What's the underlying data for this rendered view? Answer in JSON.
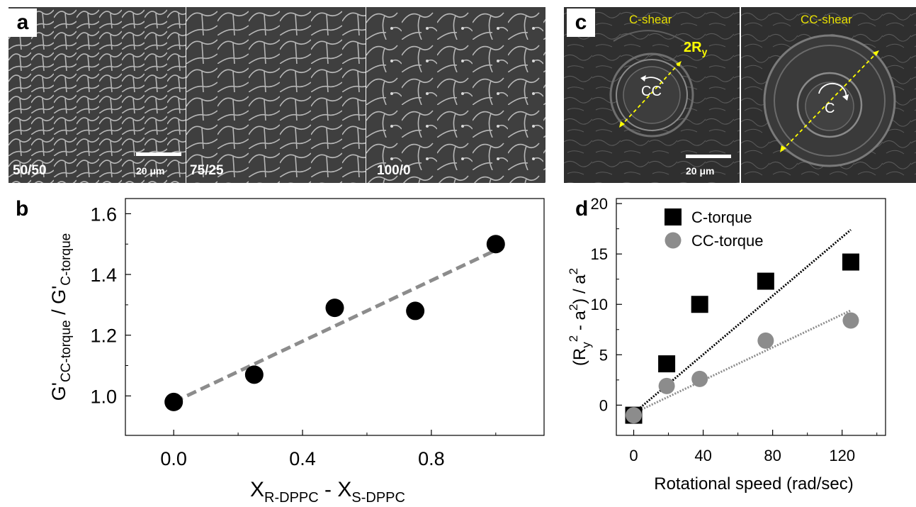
{
  "panel_a": {
    "label": "a",
    "images": [
      {
        "label": "50/50"
      },
      {
        "label": "75/25"
      },
      {
        "label": "100/0"
      }
    ],
    "scalebar_label": "20 μm"
  },
  "panel_c": {
    "label": "c",
    "left_title": "C-shear",
    "right_title": "CC-shear",
    "ry_label_main": "2R",
    "ry_label_sub": "y",
    "left_arrow_label": "CC",
    "right_arrow_label": "C",
    "scalebar_label": "20 μm",
    "accent_color": "#ffff00"
  },
  "chart_data": [
    {
      "panel": "b",
      "type": "scatter",
      "xlabel_main": "X",
      "xlabel_sub1": "R-DPPC",
      "xlabel_mid": " - X",
      "xlabel_sub2": "S-DPPC",
      "ylabel_main1": "G'",
      "ylabel_sub1": "CC-torque",
      "ylabel_mid": " / G'",
      "ylabel_sub2": "C-torque",
      "xlim": [
        -0.15,
        1.15
      ],
      "ylim": [
        0.87,
        1.65
      ],
      "xticks": [
        0.0,
        0.4,
        0.8
      ],
      "xtick_labels": [
        "0.0",
        "0.4",
        "0.8"
      ],
      "yticks": [
        1.0,
        1.2,
        1.4,
        1.6
      ],
      "ytick_labels": [
        "1.0",
        "1.2",
        "1.4",
        "1.6"
      ],
      "x": [
        0.0,
        0.25,
        0.5,
        0.75,
        1.0
      ],
      "y": [
        0.98,
        1.07,
        1.29,
        1.28,
        1.5
      ],
      "fit_line": {
        "x": [
          0.0,
          1.0
        ],
        "y": [
          0.98,
          1.48
        ]
      },
      "marker_color": "#000000",
      "fit_color": "#8c8c8c",
      "grid": false
    },
    {
      "panel": "d",
      "type": "scatter",
      "xlabel": "Rotational speed (rad/sec)",
      "ylabel_parts": [
        "(R",
        "y",
        "2",
        " - a",
        "2",
        ") / a",
        "2"
      ],
      "xlim": [
        -10,
        145
      ],
      "ylim": [
        -3,
        20.5
      ],
      "xticks": [
        0,
        40,
        80,
        120
      ],
      "xtick_labels": [
        "0",
        "40",
        "80",
        "120"
      ],
      "yticks": [
        0,
        5,
        10,
        15,
        20
      ],
      "ytick_labels": [
        "0",
        "5",
        "10",
        "15",
        "20"
      ],
      "legend_position": "top-left",
      "series": [
        {
          "name": "C-torque",
          "marker": "square",
          "color": "#000000",
          "x": [
            0,
            19,
            38,
            76,
            125
          ],
          "y": [
            -1,
            4.1,
            10,
            12.3,
            14.2
          ],
          "fit_line": {
            "x": [
              0,
              125
            ],
            "y": [
              -0.8,
              17.4
            ]
          }
        },
        {
          "name": "CC-torque",
          "marker": "circle",
          "color": "#8c8c8c",
          "x": [
            0,
            19,
            38,
            76,
            125
          ],
          "y": [
            -1,
            1.9,
            2.6,
            6.4,
            8.4
          ],
          "fit_line": {
            "x": [
              0,
              125
            ],
            "y": [
              -0.8,
              9.4
            ]
          }
        }
      ],
      "grid": false
    }
  ]
}
